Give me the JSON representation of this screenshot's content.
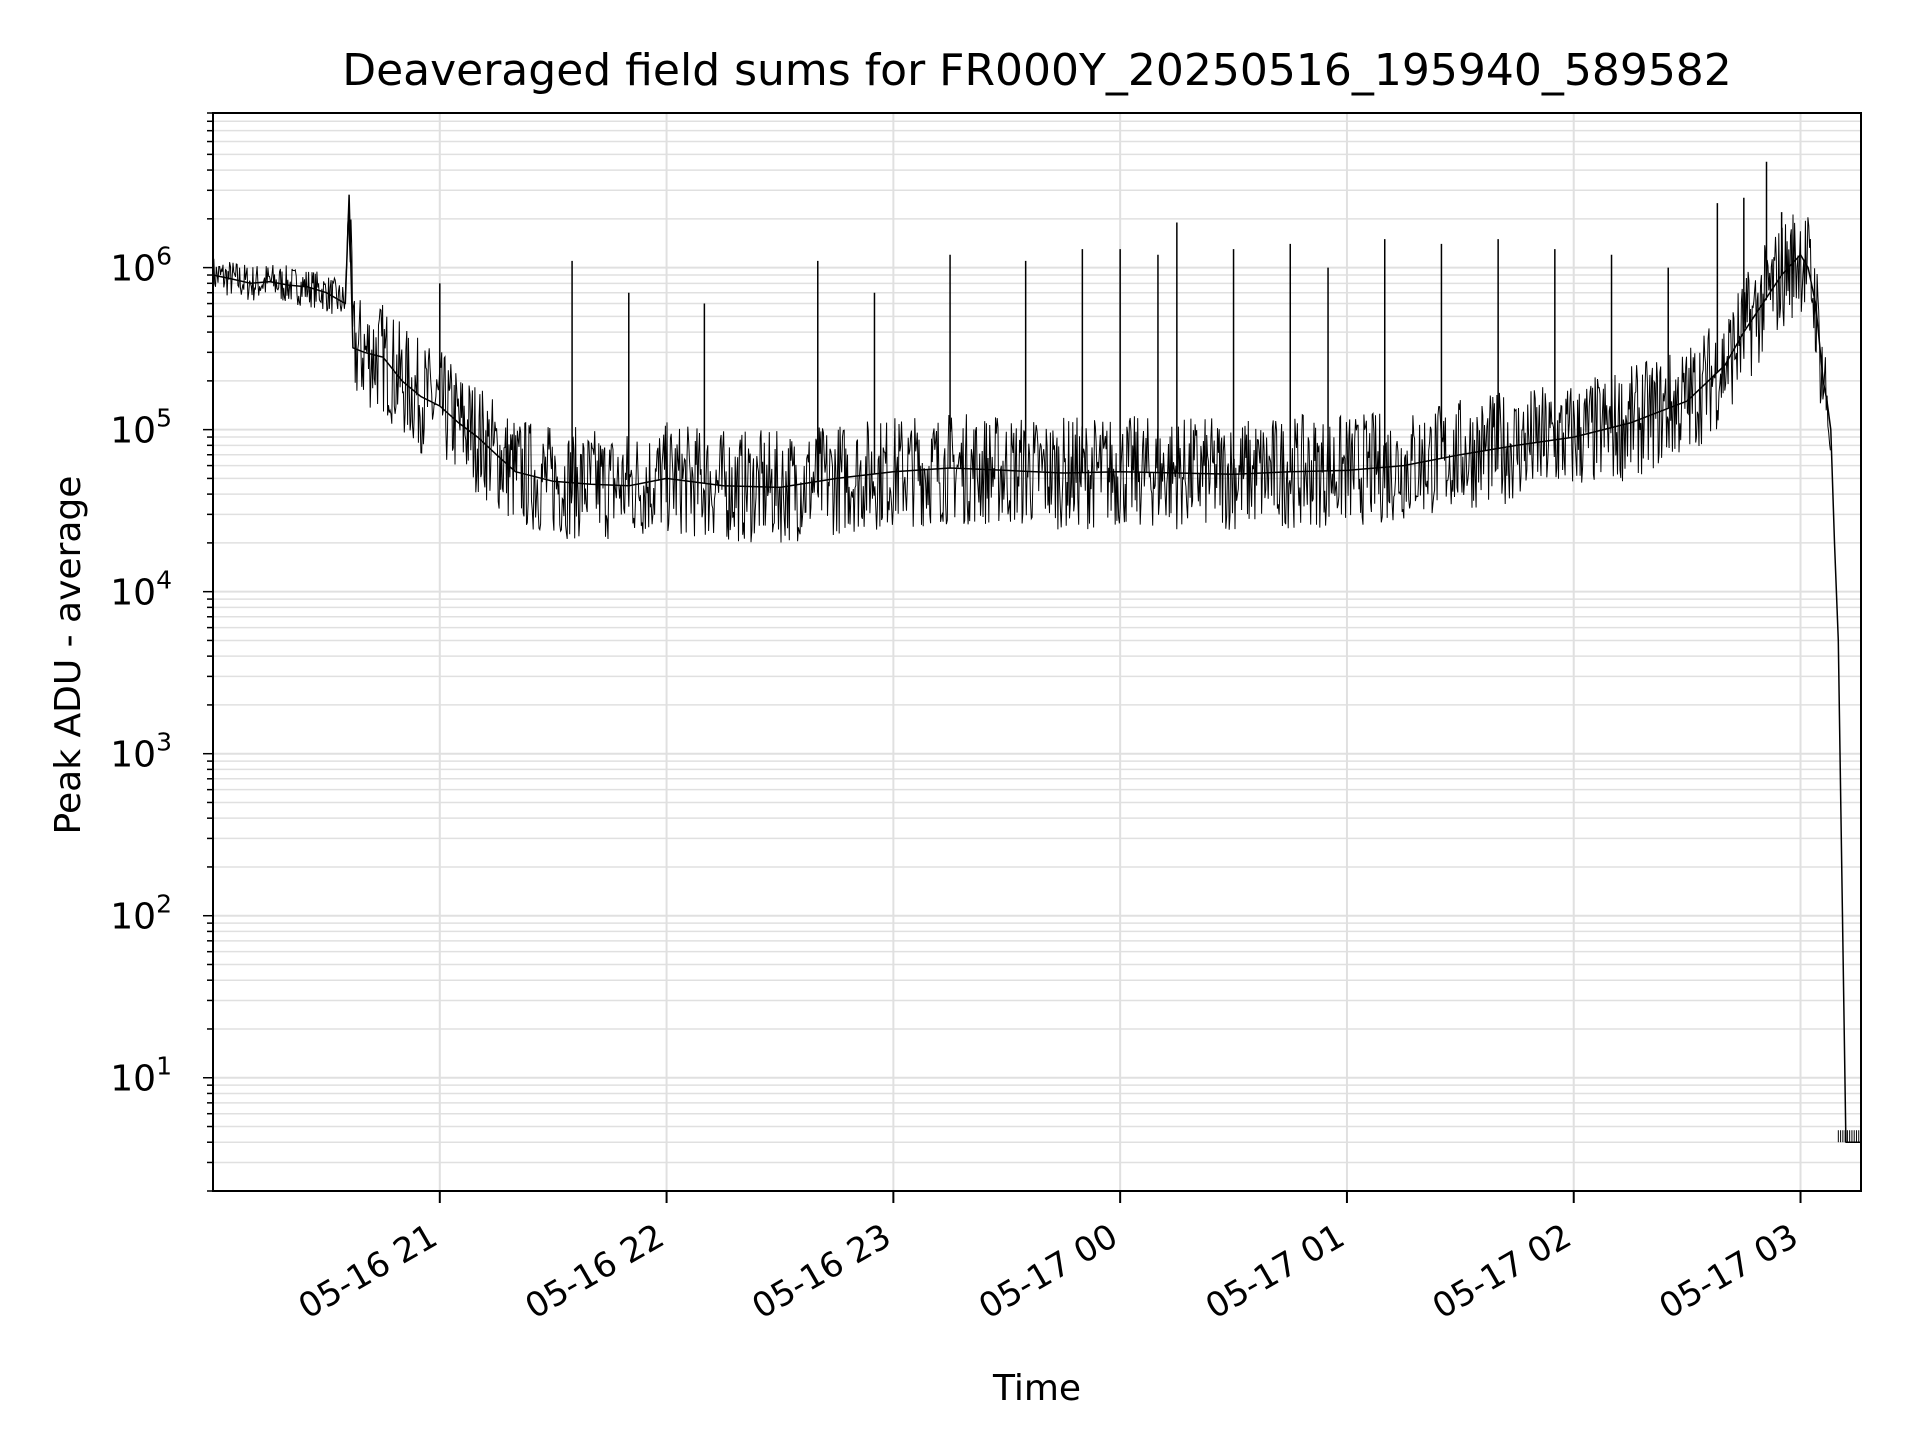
{
  "chart_data": {
    "type": "line",
    "title": "Deaveraged field sums for FR000Y_20250516_195940_589582",
    "xlabel": "Time",
    "ylabel": "Peak ADU - average",
    "yscale": "log",
    "ylim": [
      2,
      9000000
    ],
    "xlim": [
      "05-16 20:00",
      "05-17 03:16"
    ],
    "grid": "both",
    "x_ticks": [
      {
        "label": "05-16 21",
        "t": "05-16 21:00"
      },
      {
        "label": "05-16 22",
        "t": "05-16 22:00"
      },
      {
        "label": "05-16 23",
        "t": "05-16 23:00"
      },
      {
        "label": "05-17 00",
        "t": "05-17 00:00"
      },
      {
        "label": "05-17 01",
        "t": "05-17 01:00"
      },
      {
        "label": "05-17 02",
        "t": "05-17 02:00"
      },
      {
        "label": "05-17 03",
        "t": "05-17 03:00"
      }
    ],
    "y_ticks": [
      {
        "base": "10",
        "exp": "1",
        "value": 10
      },
      {
        "base": "10",
        "exp": "2",
        "value": 100
      },
      {
        "base": "10",
        "exp": "3",
        "value": 1000
      },
      {
        "base": "10",
        "exp": "4",
        "value": 10000
      },
      {
        "base": "10",
        "exp": "5",
        "value": 100000
      },
      {
        "base": "10",
        "exp": "6",
        "value": 1000000
      }
    ],
    "line_color": "#000000",
    "grid_color": "#e0e0e0",
    "series": [
      {
        "x": [
          "05-16 20:00",
          "05-16 20:05",
          "05-16 20:10",
          "05-16 20:15",
          "05-16 20:20",
          "05-16 20:25",
          "05-16 20:30",
          "05-16 20:35",
          "05-16 20:36",
          "05-16 20:37",
          "05-16 20:40",
          "05-16 20:45",
          "05-16 20:50",
          "05-16 20:55",
          "05-16 21:00",
          "05-16 21:05",
          "05-16 21:10",
          "05-16 21:15",
          "05-16 21:20",
          "05-16 21:30",
          "05-16 21:40",
          "05-16 21:50",
          "05-16 22:00",
          "05-16 22:15",
          "05-16 22:30",
          "05-16 22:45",
          "05-16 23:00",
          "05-16 23:15",
          "05-16 23:30",
          "05-16 23:45",
          "05-17 00:00",
          "05-17 00:15",
          "05-17 00:30",
          "05-17 00:45",
          "05-17 01:00",
          "05-17 01:15",
          "05-17 01:30",
          "05-17 01:45",
          "05-17 02:00",
          "05-17 02:15",
          "05-17 02:30",
          "05-17 02:40",
          "05-17 02:45",
          "05-17 02:50",
          "05-17 02:55",
          "05-17 03:00",
          "05-17 03:02",
          "05-17 03:04",
          "05-17 03:06",
          "05-17 03:07",
          "05-17 03:08",
          "05-17 03:09",
          "05-17 03:10",
          "05-17 03:12",
          "05-17 03:14",
          "05-17 03:16"
        ],
        "values": [
          900000,
          850000,
          800000,
          820000,
          780000,
          760000,
          700000,
          600000,
          2800000,
          320000,
          300000,
          280000,
          200000,
          160000,
          140000,
          110000,
          90000,
          70000,
          55000,
          48000,
          46000,
          45000,
          50000,
          45000,
          44000,
          50000,
          55000,
          58000,
          56000,
          54000,
          55000,
          54000,
          53000,
          55000,
          56000,
          60000,
          70000,
          80000,
          90000,
          110000,
          150000,
          250000,
          400000,
          600000,
          900000,
          1200000,
          1000000,
          600000,
          200000,
          150000,
          100000,
          20000,
          5000,
          4,
          4,
          4
        ]
      }
    ],
    "spikes": [
      {
        "t": "05-16 20:36",
        "value": 2800000
      },
      {
        "t": "05-16 21:00",
        "value": 800000
      },
      {
        "t": "05-16 21:35",
        "value": 1100000
      },
      {
        "t": "05-16 21:50",
        "value": 700000
      },
      {
        "t": "05-16 22:10",
        "value": 600000
      },
      {
        "t": "05-16 22:40",
        "value": 1100000
      },
      {
        "t": "05-16 22:55",
        "value": 700000
      },
      {
        "t": "05-16 23:15",
        "value": 1200000
      },
      {
        "t": "05-16 23:35",
        "value": 1100000
      },
      {
        "t": "05-16 23:50",
        "value": 1300000
      },
      {
        "t": "05-17 00:00",
        "value": 1300000
      },
      {
        "t": "05-17 00:10",
        "value": 1200000
      },
      {
        "t": "05-17 00:15",
        "value": 1900000
      },
      {
        "t": "05-17 00:30",
        "value": 1300000
      },
      {
        "t": "05-17 00:45",
        "value": 1400000
      },
      {
        "t": "05-17 00:55",
        "value": 1000000
      },
      {
        "t": "05-17 01:10",
        "value": 1500000
      },
      {
        "t": "05-17 01:25",
        "value": 1400000
      },
      {
        "t": "05-17 01:40",
        "value": 1500000
      },
      {
        "t": "05-17 01:55",
        "value": 1300000
      },
      {
        "t": "05-17 02:10",
        "value": 1200000
      },
      {
        "t": "05-17 02:25",
        "value": 1000000
      },
      {
        "t": "05-17 02:38",
        "value": 2500000
      },
      {
        "t": "05-17 02:45",
        "value": 2700000
      },
      {
        "t": "05-17 02:51",
        "value": 4500000
      },
      {
        "t": "05-17 02:55",
        "value": 2200000
      }
    ]
  }
}
